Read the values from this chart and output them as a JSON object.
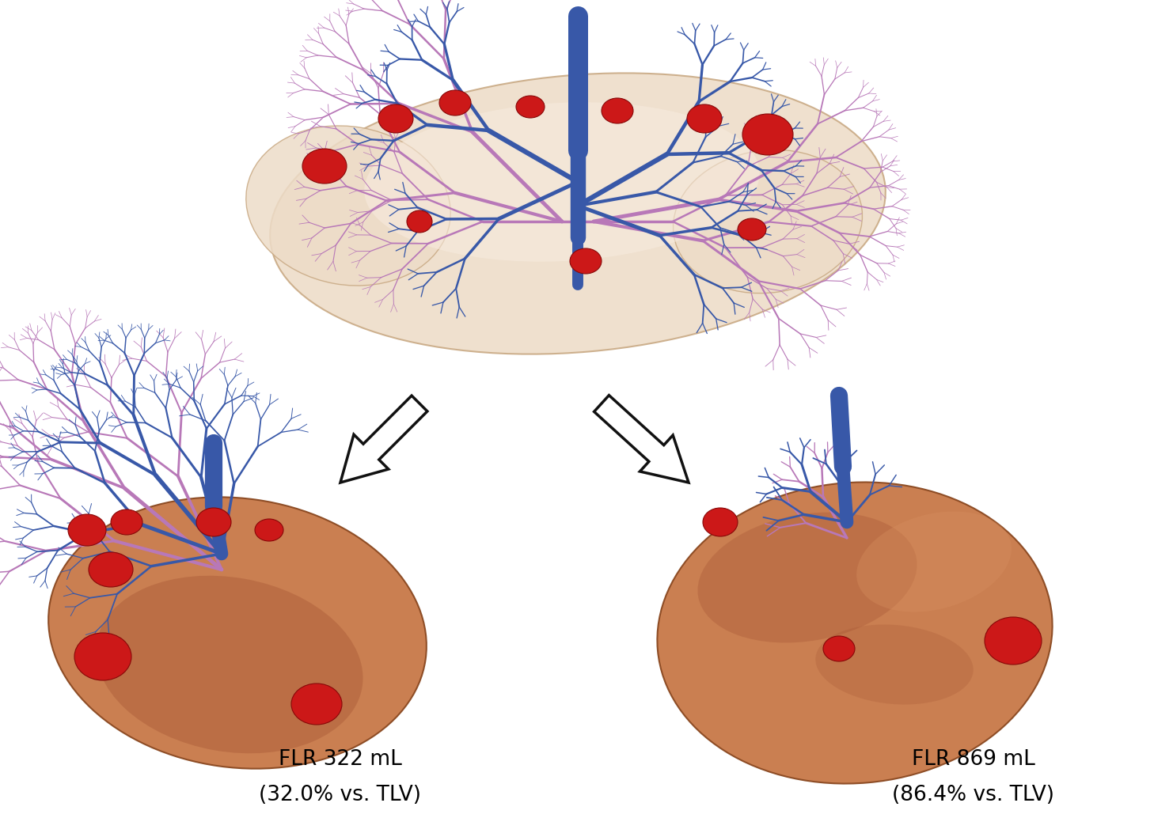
{
  "label_left_line1": "FLR 322 mL",
  "label_left_line2": "(32.0% vs. TLV)",
  "label_right_line1": "FLR 869 mL",
  "label_right_line2": "(86.4% vs. TLV)",
  "bg_color": "#ffffff",
  "text_color": "#000000",
  "label_fontsize": 19,
  "figsize": [
    14.58,
    10.34
  ],
  "dpi": 100,
  "liver_top_color": "#eddcc8",
  "liver_top_edge": "#c8a882",
  "liver_bottom_color": "#c87848",
  "liver_bottom_edge": "#8a4820",
  "blue_vein": "#3858a8",
  "pink_vein": "#b878b8",
  "tumor_color": "#cc1818",
  "tumor_edge": "#880808",
  "arrow_face": "#ffffff",
  "arrow_edge": "#111111"
}
